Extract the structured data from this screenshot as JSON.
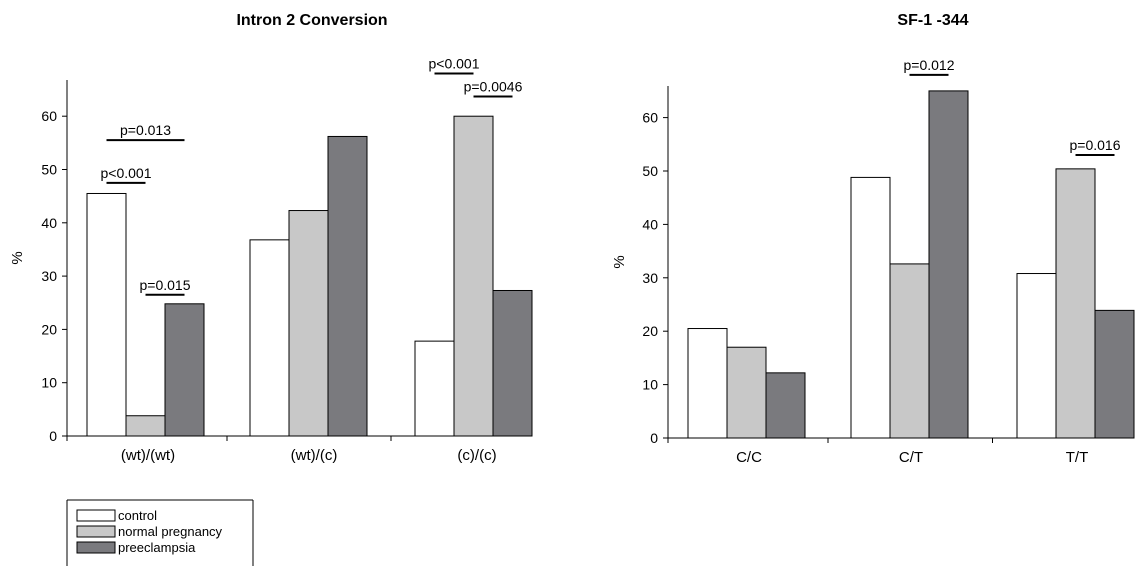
{
  "colors": {
    "control": "#ffffff",
    "normal_pregnancy": "#c8c8c8",
    "preeclampsia": "#7a7a7e",
    "stroke": "#000000"
  },
  "legend": {
    "items": [
      {
        "label": "control",
        "color": "#ffffff"
      },
      {
        "label": "normal pregnancy",
        "color": "#c8c8c8"
      },
      {
        "label": "preeclampsia",
        "color": "#7a7a7e"
      }
    ]
  },
  "chart_data": [
    {
      "type": "bar",
      "title": "Intron 2 Conversion",
      "ylabel": "%",
      "xlabel": "",
      "ylim": [
        0,
        65
      ],
      "yticks": [
        0,
        10,
        20,
        30,
        40,
        50,
        60
      ],
      "grid": false,
      "categories": [
        "(wt)/(wt)",
        "(wt)/(c)",
        "(c)/(c)"
      ],
      "series": [
        {
          "name": "control",
          "values": [
            45.5,
            36.8,
            17.8
          ]
        },
        {
          "name": "normal pregnancy",
          "values": [
            3.8,
            42.3,
            60.0
          ]
        },
        {
          "name": "preeclampsia",
          "values": [
            24.8,
            56.2,
            27.3
          ]
        }
      ],
      "annotations": [
        {
          "text": "p=0.013",
          "from": [
            0,
            0
          ],
          "to": [
            0,
            2
          ],
          "y": 55.5
        },
        {
          "text": "p<0.001",
          "from": [
            0,
            0
          ],
          "to": [
            0,
            1
          ],
          "y": 47.5
        },
        {
          "text": "p=0.015",
          "from": [
            0,
            1
          ],
          "to": [
            0,
            2
          ],
          "y": 26.5
        },
        {
          "text": "p<0.001",
          "from": [
            2,
            0
          ],
          "to": [
            2,
            1
          ],
          "y": 68.0
        },
        {
          "text": "p=0.0046",
          "from": [
            2,
            1
          ],
          "to": [
            2,
            2
          ],
          "y": 63.7
        }
      ]
    },
    {
      "type": "bar",
      "title": "SF-1 -344",
      "ylabel": "%",
      "xlabel": "",
      "ylim": [
        0,
        65
      ],
      "yticks": [
        0,
        10,
        20,
        30,
        40,
        50,
        60
      ],
      "grid": false,
      "categories": [
        "C/C",
        "C/T",
        "T/T"
      ],
      "series": [
        {
          "name": "control",
          "values": [
            20.5,
            48.8,
            30.8
          ]
        },
        {
          "name": "normal pregnancy",
          "values": [
            17.0,
            32.6,
            50.4
          ]
        },
        {
          "name": "preeclampsia",
          "values": [
            12.2,
            65.0,
            23.9
          ]
        }
      ],
      "annotations": [
        {
          "text": "p=0.012",
          "from": [
            1,
            1
          ],
          "to": [
            1,
            2
          ],
          "y": 68.0
        },
        {
          "text": "p=0.016",
          "from": [
            2,
            1
          ],
          "to": [
            2,
            2
          ],
          "y": 53.0
        }
      ]
    }
  ]
}
